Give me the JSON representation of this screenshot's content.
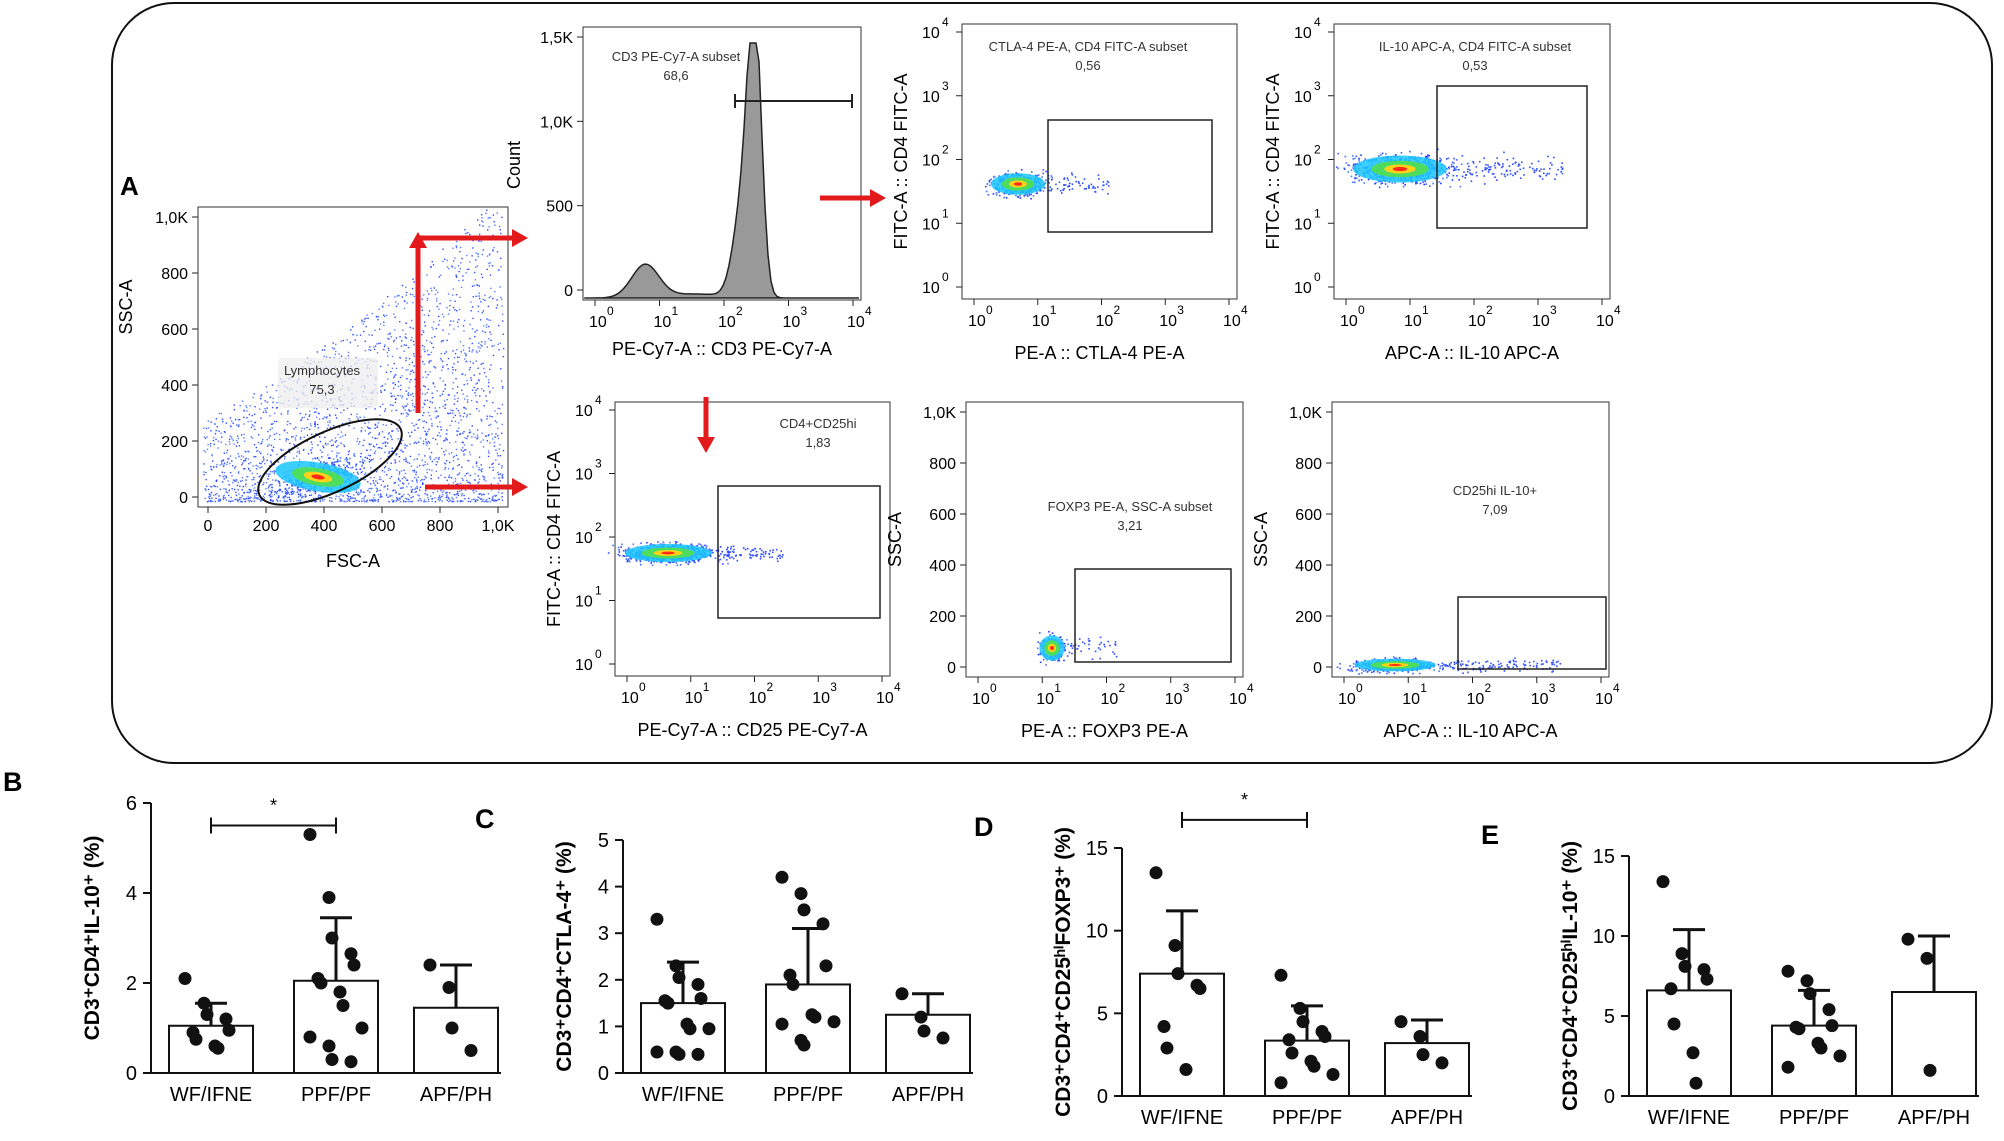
{
  "panel_a": {
    "label": "A",
    "gates": [
      {
        "name": "Lymphocytes",
        "value": "75,3"
      },
      {
        "name": "CD3 PE-Cy7-A subset",
        "value": "68,6"
      },
      {
        "name": "CTLA-4 PE-A, CD4 FITC-A subset",
        "value": "0,56"
      },
      {
        "name": "IL-10 APC-A, CD4 FITC-A subset",
        "value": "0,53"
      },
      {
        "name": "CD4+CD25hi",
        "value": "1,83"
      },
      {
        "name": "FOXP3 PE-A, SSC-A subset",
        "value": "3,21"
      },
      {
        "name": "CD25hi IL-10+",
        "value": "7,09"
      }
    ],
    "axes": {
      "fsc": "FSC-A",
      "ssc": "SSC-A",
      "count": "Count",
      "cd3": "PE-Cy7-A :: CD3 PE-Cy7-A",
      "cd25": "PE-Cy7-A :: CD25 PE-Cy7-A",
      "cd4": "FITC-A :: CD4 FITC-A",
      "ctla4": "PE-A :: CTLA-4 PE-A",
      "il10": "APC-A :: IL-10 APC-A",
      "foxp3": "PE-A :: FOXP3 PE-A"
    },
    "ticks": {
      "lin_k": [
        "0",
        "200",
        "400",
        "600",
        "800",
        "1,0K"
      ],
      "count": [
        "0",
        "500",
        "1,0K",
        "1,5K"
      ],
      "log": [
        "0",
        "1",
        "2",
        "3",
        "4"
      ]
    },
    "arrow_color": "#e31a1c"
  },
  "chart_data": [
    {
      "type": "bar",
      "panel": "B",
      "ylabel": "CD3⁺CD4⁺IL-10⁺ (%)",
      "categories": [
        "WF/IFNE",
        "PPF/PF",
        "APF/PH"
      ],
      "ylim": [
        0,
        6
      ],
      "yticks": [
        0,
        2,
        4,
        6
      ],
      "means": [
        1.05,
        2.05,
        1.45
      ],
      "sd": [
        0.5,
        1.4,
        0.95
      ],
      "points": [
        [
          2.1,
          1.55,
          1.3,
          1.2,
          0.95,
          0.9,
          0.75,
          0.6,
          0.55
        ],
        [
          5.3,
          3.9,
          3.0,
          2.65,
          2.4,
          2.1,
          2.0,
          1.8,
          1.5,
          1.0,
          0.8,
          0.6,
          0.3,
          0.25
        ],
        [
          2.4,
          1.9,
          1.0,
          0.5
        ]
      ],
      "significance": [
        {
          "from": 0,
          "to": 1,
          "y": 5.5,
          "label": "*"
        }
      ]
    },
    {
      "type": "bar",
      "panel": "C",
      "ylabel": "CD3⁺CD4⁺CTLA-4⁺ (%)",
      "categories": [
        "WF/IFNE",
        "PPF/PF",
        "APF/PH"
      ],
      "ylim": [
        0,
        5
      ],
      "yticks": [
        0,
        1,
        2,
        3,
        4,
        5
      ],
      "means": [
        1.5,
        1.9,
        1.25
      ],
      "sd": [
        0.88,
        1.2,
        0.45
      ],
      "points": [
        [
          3.3,
          2.3,
          2.05,
          1.9,
          1.6,
          1.55,
          1.5,
          1.05,
          0.95,
          0.95,
          0.45,
          0.45,
          0.4,
          0.4
        ],
        [
          4.2,
          3.85,
          3.5,
          3.2,
          2.3,
          2.1,
          1.9,
          1.25,
          1.2,
          1.1,
          1.05,
          0.7,
          0.6
        ],
        [
          1.7,
          1.2,
          0.9,
          0.75
        ]
      ],
      "significance": []
    },
    {
      "type": "bar",
      "panel": "D",
      "ylabel": "CD3⁺CD4⁺CD25ʰⁱFOXP3⁺ (%)",
      "categories": [
        "WF/IFNE",
        "PPF/PF",
        "APF/PH"
      ],
      "ylim": [
        0,
        15
      ],
      "yticks": [
        0,
        5,
        10,
        15
      ],
      "means": [
        7.4,
        3.35,
        3.2
      ],
      "sd": [
        3.8,
        2.1,
        1.4
      ],
      "points": [
        [
          13.5,
          9.1,
          7.4,
          6.7,
          6.5,
          4.2,
          2.9,
          1.6
        ],
        [
          7.3,
          5.3,
          4.5,
          3.9,
          3.6,
          3.4,
          2.6,
          2.1,
          1.8,
          1.3,
          0.8
        ],
        [
          4.5,
          3.6,
          2.5,
          2.0
        ]
      ],
      "significance": [
        {
          "from": 0,
          "to": 1,
          "y": 16.7,
          "label": "*"
        }
      ]
    },
    {
      "type": "bar",
      "panel": "E",
      "ylabel": "CD3⁺CD4⁺CD25ʰⁱIL-10⁺ (%)",
      "categories": [
        "WF/IFNE",
        "PPF/PF",
        "APF/PH"
      ],
      "ylim": [
        0,
        15
      ],
      "yticks": [
        0,
        5,
        10,
        15
      ],
      "means": [
        6.6,
        4.4,
        6.5
      ],
      "sd": [
        3.8,
        2.2,
        3.5
      ],
      "points": [
        [
          13.4,
          8.9,
          8.1,
          7.9,
          7.3,
          6.7,
          4.5,
          2.7,
          0.8
        ],
        [
          7.8,
          7.2,
          6.4,
          5.4,
          4.4,
          4.3,
          4.2,
          3.3,
          3.0,
          2.5,
          1.8
        ],
        [
          9.8,
          8.6,
          1.6
        ]
      ],
      "significance": []
    }
  ]
}
